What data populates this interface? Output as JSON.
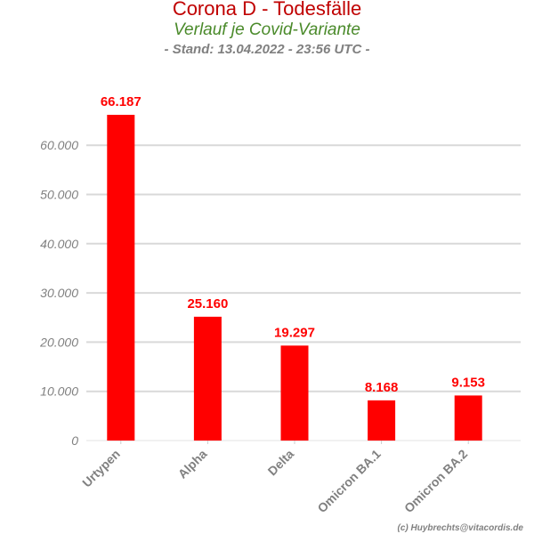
{
  "title": "Corona D - Todesfälle",
  "subtitle": "Verlauf je Covid-Variante",
  "stand": "- Stand: 13.04.2022 - 23:56 UTC -",
  "credit": "(c) Huybrechts@vitacordis.de",
  "chart_data": {
    "type": "bar",
    "categories": [
      "Urtypen",
      "Alpha",
      "Delta",
      "Omicron BA.1",
      "Omicron BA.2"
    ],
    "values": [
      66187,
      25160,
      19297,
      8168,
      9153
    ],
    "value_labels": [
      "66.187",
      "25.160",
      "19.297",
      "8.168",
      "9.153"
    ],
    "yticks": [
      0,
      10000,
      20000,
      30000,
      40000,
      50000,
      60000
    ],
    "ytick_labels": [
      "0",
      "10.000",
      "20.000",
      "30.000",
      "40.000",
      "50.000",
      "60.000"
    ],
    "ylim": [
      0,
      66187
    ],
    "grid": true,
    "bar_color": "#ff0000"
  }
}
